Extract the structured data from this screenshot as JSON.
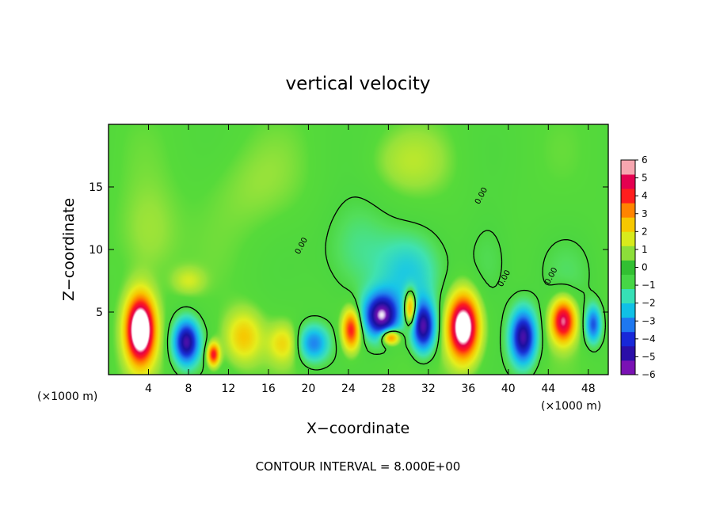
{
  "chart_data": {
    "type": "heatmap",
    "title": "vertical velocity",
    "xlabel": "X−coordinate",
    "ylabel": "Z−coordinate",
    "x_unit": "(×1000 m)",
    "y_unit": "(×1000 m)",
    "xlim": [
      0,
      50
    ],
    "ylim": [
      0,
      20
    ],
    "x_ticks": [
      4,
      8,
      12,
      16,
      20,
      24,
      28,
      32,
      36,
      40,
      44,
      48
    ],
    "y_ticks": [
      5,
      10,
      15
    ],
    "colorbar": {
      "range": [
        -6,
        6
      ],
      "tick_values": [
        6,
        5,
        4,
        3,
        2,
        1,
        0,
        -1,
        -2,
        -3,
        -4,
        -5,
        -6
      ],
      "tick_labels": [
        "6",
        "5",
        "4",
        "3",
        "2",
        "1",
        "0",
        "−1",
        "−2",
        "−3",
        "−4",
        "−5",
        "−6"
      ]
    },
    "contour_label": "0.00",
    "contour_interval_text": "CONTOUR INTERVAL = 8.000E+00",
    "features": [
      {
        "x": 3.2,
        "z": 3.6,
        "sx": 1.4,
        "sz": 2.6,
        "w": 9
      },
      {
        "x": 7.8,
        "z": 2.6,
        "sx": 1.3,
        "sz": 1.8,
        "w": -6
      },
      {
        "x": 10.5,
        "z": 1.6,
        "sx": 0.6,
        "sz": 0.9,
        "w": 5
      },
      {
        "x": 13.5,
        "z": 3.0,
        "sx": 1.8,
        "sz": 2.0,
        "w": 2.5
      },
      {
        "x": 17.5,
        "z": 2.5,
        "sx": 1.5,
        "sz": 1.5,
        "w": 2
      },
      {
        "x": 20.5,
        "z": 2.5,
        "sx": 1.6,
        "sz": 1.5,
        "w": -3.5
      },
      {
        "x": 24.3,
        "z": 3.6,
        "sx": 0.9,
        "sz": 1.6,
        "w": 5
      },
      {
        "x": 27.3,
        "z": 4.7,
        "sx": 1.8,
        "sz": 1.8,
        "w": -6.5
      },
      {
        "x": 28.2,
        "z": 3.0,
        "sx": 0.9,
        "sz": 0.6,
        "w": 5
      },
      {
        "x": 30.2,
        "z": 5.3,
        "sx": 0.6,
        "sz": 1.4,
        "w": 5
      },
      {
        "x": 31.5,
        "z": 3.8,
        "sx": 1.2,
        "sz": 2.0,
        "w": -6
      },
      {
        "x": 35.5,
        "z": 3.8,
        "sx": 1.5,
        "sz": 2.5,
        "w": 8
      },
      {
        "x": 41.5,
        "z": 3.0,
        "sx": 1.3,
        "sz": 2.2,
        "w": -6
      },
      {
        "x": 45.5,
        "z": 4.3,
        "sx": 1.2,
        "sz": 1.7,
        "w": 6
      },
      {
        "x": 48.5,
        "z": 4.0,
        "sx": 0.8,
        "sz": 1.5,
        "w": -4
      },
      {
        "x": 8.0,
        "z": 7.5,
        "sx": 1.5,
        "sz": 1.0,
        "w": 1.2
      },
      {
        "x": 25.0,
        "z": 10.0,
        "sx": 3.5,
        "sz": 4.0,
        "w": -1.3
      },
      {
        "x": 30.0,
        "z": 8.0,
        "sx": 3.0,
        "sz": 3.0,
        "w": -2
      },
      {
        "x": 38.0,
        "z": 9.0,
        "sx": 2.5,
        "sz": 4.0,
        "w": -0.9
      },
      {
        "x": 46.0,
        "z": 8.0,
        "sx": 3.0,
        "sz": 3.0,
        "w": -0.6
      },
      {
        "x": 4.0,
        "z": 11.0,
        "sx": 3.0,
        "sz": 4.0,
        "w": 0.8
      },
      {
        "x": 30.0,
        "z": 17.0,
        "sx": 4.0,
        "sz": 2.5,
        "w": 0.8
      },
      {
        "x": 14.0,
        "z": 15.0,
        "sx": 5.0,
        "sz": 4.0,
        "w": 0.5
      }
    ]
  }
}
